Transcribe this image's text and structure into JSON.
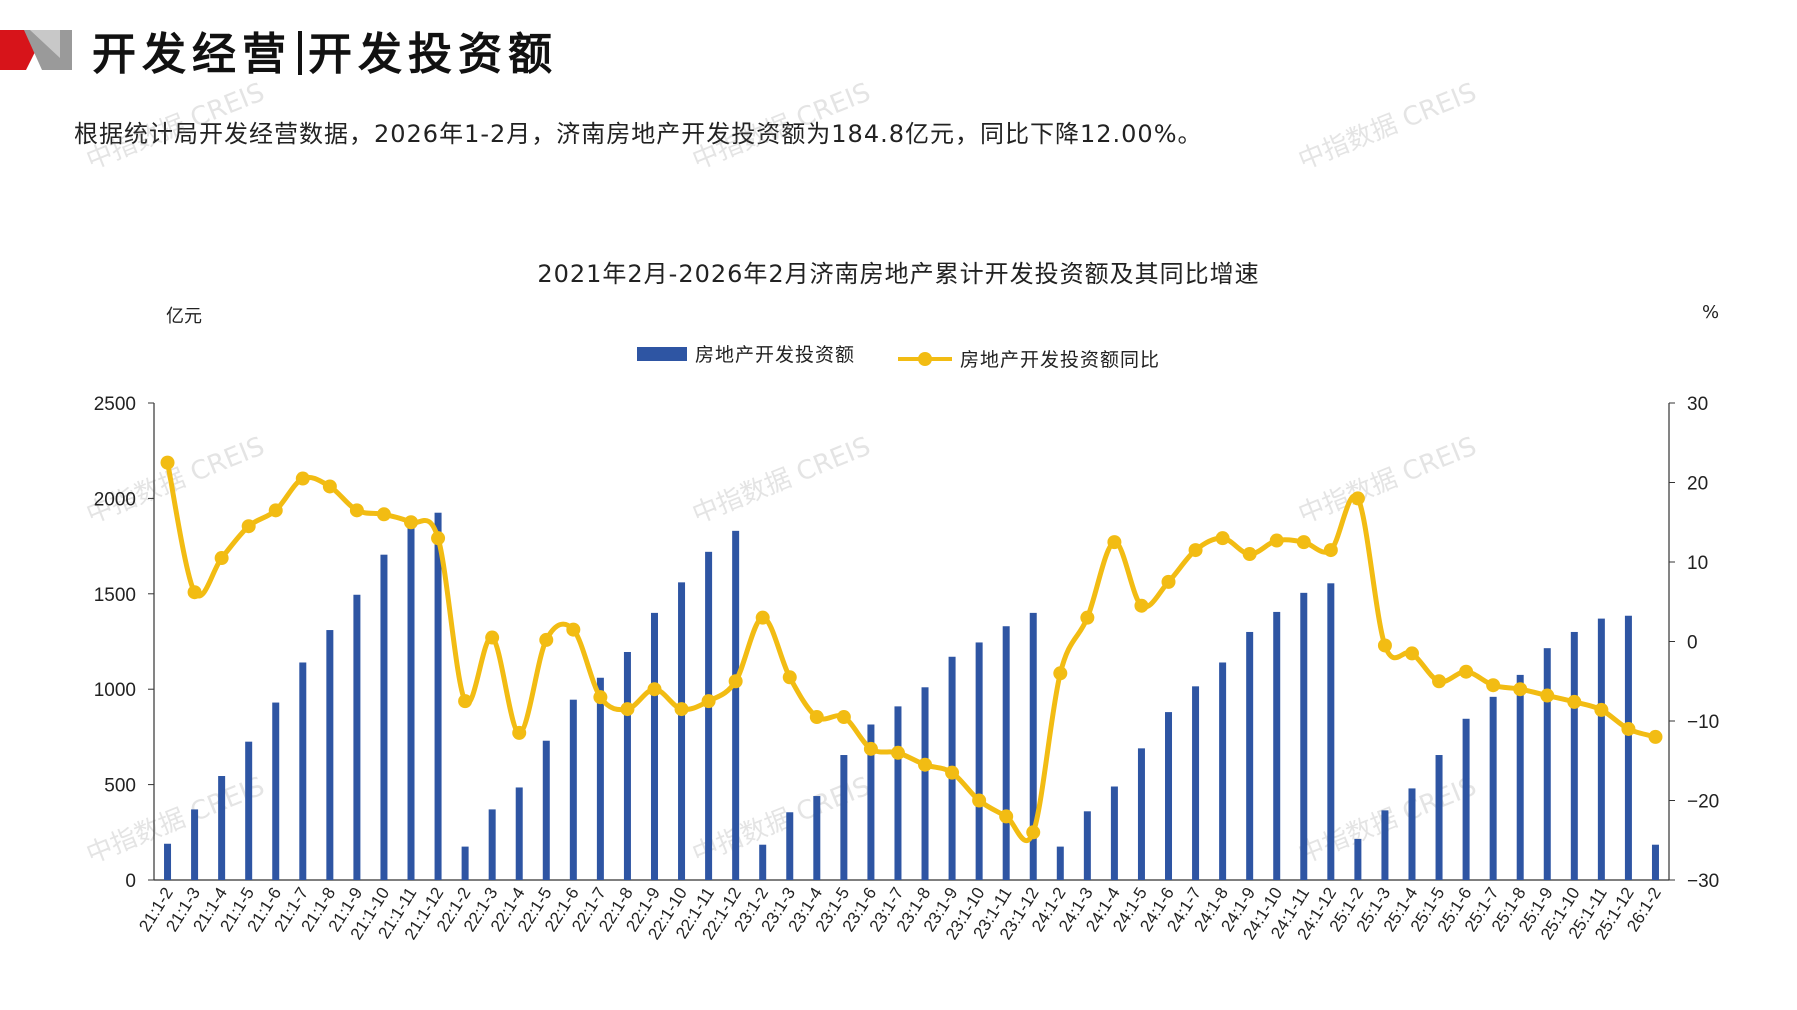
{
  "header": {
    "title_left": "开发经营",
    "title_right": "开发投资额",
    "summary": "根据统计局开发经营数据，2026年1-2月，济南房地产开发投资额为184.8亿元，同比下降12.00%。"
  },
  "watermark_text": "中指数据 CREIS",
  "colors": {
    "bar": "#2e55a3",
    "line": "#f2bc13",
    "logo_red": "#d7141a",
    "logo_gray": "#8a8a8a"
  },
  "chart_data": {
    "type": "bar",
    "title": "2021年2月-2026年2月济南房地产累计开发投资额及其同比增速",
    "y_unit_left": "亿元",
    "y_unit_right": "%",
    "ylim": [
      0,
      2500
    ],
    "y2lim": [
      -30,
      30
    ],
    "yticks": [
      "0",
      "500",
      "1000",
      "1500",
      "2000",
      "2500"
    ],
    "y2ticks": [
      "-30",
      "-20",
      "-10",
      "0",
      "10",
      "20",
      "30"
    ],
    "legend_position": "top-center",
    "grid": false,
    "categories": [
      "21:1-2",
      "21:1-3",
      "21:1-4",
      "21:1-5",
      "21:1-6",
      "21:1-7",
      "21:1-8",
      "21:1-9",
      "21:1-10",
      "21:1-11",
      "21:1-12",
      "22:1-2",
      "22:1-3",
      "22:1-4",
      "22:1-5",
      "22:1-6",
      "22:1-7",
      "22:1-8",
      "22:1-9",
      "22:1-10",
      "22:1-11",
      "22:1-12",
      "23:1-2",
      "23:1-3",
      "23:1-4",
      "23:1-5",
      "23:1-6",
      "23:1-7",
      "23:1-8",
      "23:1-9",
      "23:1-10",
      "23:1-11",
      "23:1-12",
      "24:1-2",
      "24:1-3",
      "24:1-4",
      "24:1-5",
      "24:1-6",
      "24:1-7",
      "24:1-8",
      "24:1-9",
      "24:1-10",
      "24:1-11",
      "24:1-12",
      "25:1-2",
      "25:1-3",
      "25:1-4",
      "25:1-5",
      "25:1-6",
      "25:1-7",
      "25:1-8",
      "25:1-9",
      "25:1-10",
      "25:1-11",
      "25:1-12",
      "26:1-2"
    ],
    "series": [
      {
        "name": "房地产开发投资额",
        "type": "bar",
        "axis": "left",
        "values": [
          190,
          370,
          545,
          725,
          930,
          1140,
          1310,
          1495,
          1705,
          1850,
          1925,
          175,
          370,
          485,
          730,
          945,
          1060,
          1195,
          1400,
          1560,
          1720,
          1830,
          185,
          355,
          440,
          655,
          815,
          910,
          1010,
          1170,
          1245,
          1330,
          1400,
          175,
          360,
          490,
          690,
          880,
          1015,
          1140,
          1300,
          1405,
          1505,
          1555,
          215,
          365,
          480,
          655,
          845,
          960,
          1075,
          1215,
          1300,
          1370,
          1385,
          185
        ]
      },
      {
        "name": "房地产开发投资额同比",
        "type": "line",
        "axis": "right",
        "values": [
          22.5,
          6.2,
          10.5,
          14.5,
          16.5,
          20.5,
          19.5,
          16.5,
          16.0,
          15.0,
          13.0,
          -7.5,
          0.5,
          -11.5,
          0.2,
          1.5,
          -7.0,
          -8.5,
          -6.0,
          -8.5,
          -7.5,
          -5.0,
          3.0,
          -4.5,
          -9.5,
          -9.5,
          -13.5,
          -14.0,
          -15.5,
          -16.5,
          -20.0,
          -22.0,
          -24.0,
          -4.0,
          3.0,
          12.5,
          4.5,
          7.5,
          11.5,
          13.0,
          11.0,
          12.7,
          12.5,
          11.5,
          18.0,
          -0.5,
          -1.5,
          -5.0,
          -3.8,
          -5.5,
          -6.0,
          -6.8,
          -7.6,
          -8.6,
          -11.0,
          -12.0
        ]
      }
    ]
  }
}
